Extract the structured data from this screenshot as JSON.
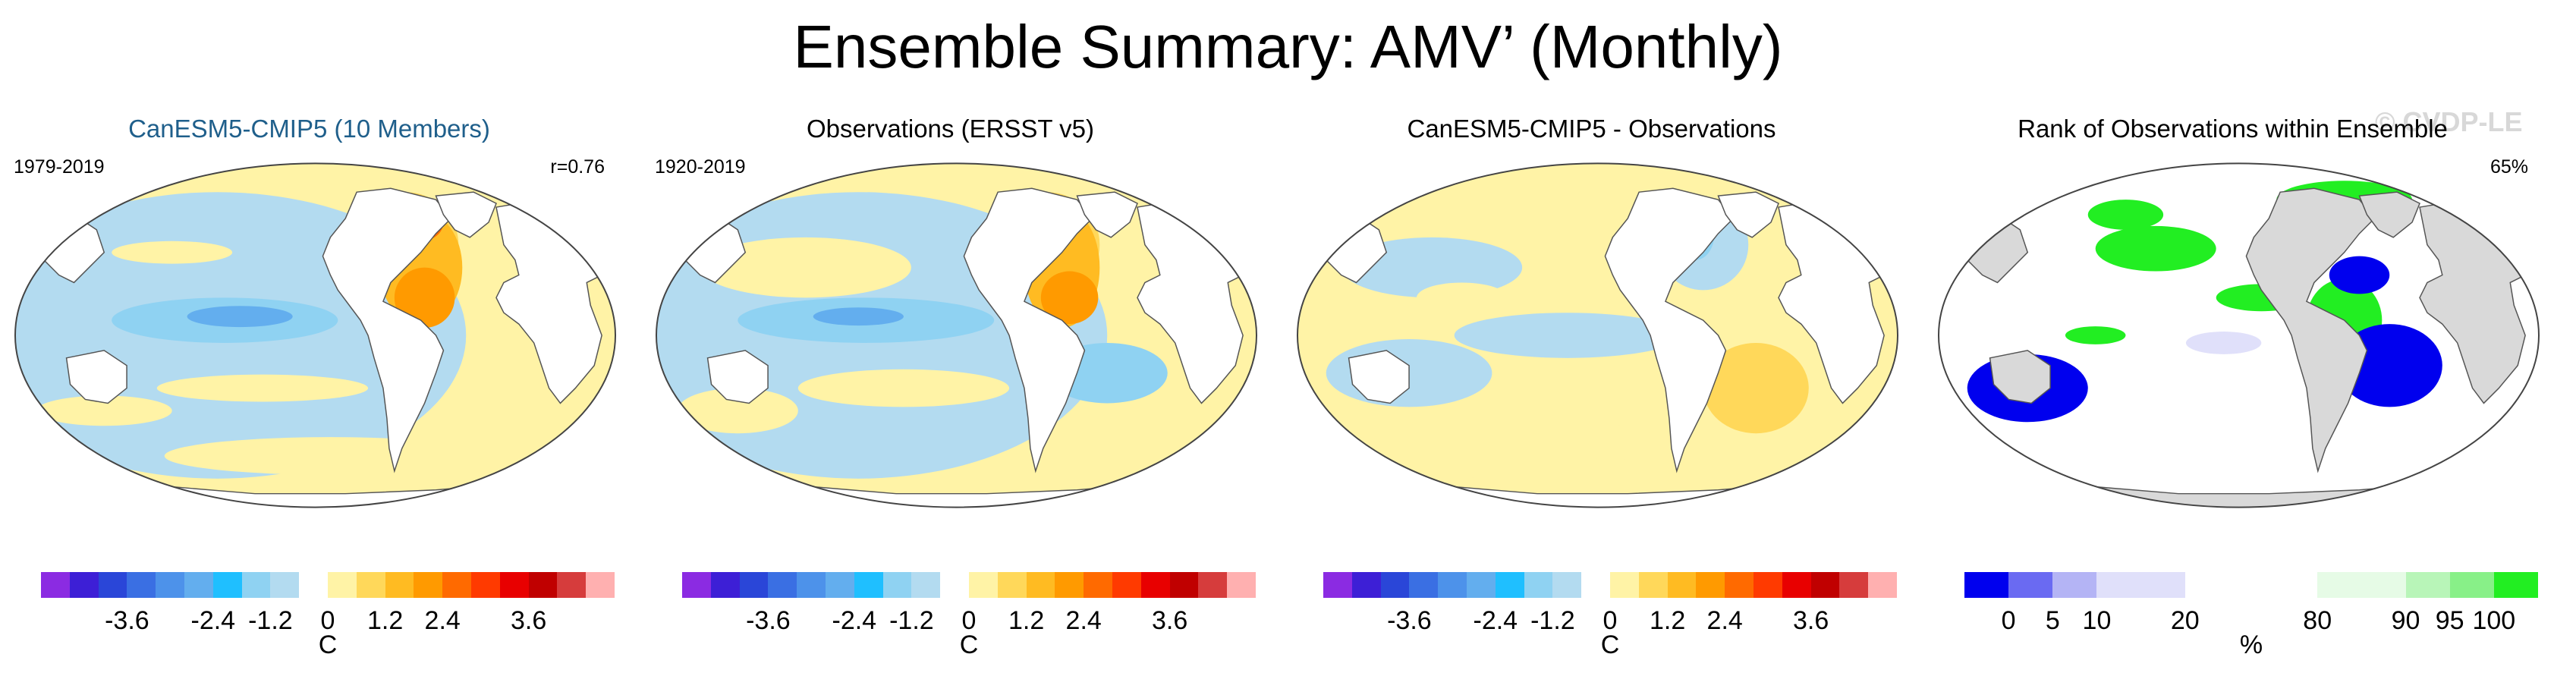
{
  "title": "Ensemble Summary: AMV’ (Monthly)",
  "watermark": "© CVDP-LE",
  "panels": [
    {
      "title": "CanESM5-CMIP5 (10 Members)",
      "title_color": "#1f5f8b",
      "left_label": "1979-2019",
      "right_label": "r=0.76",
      "ticks": [
        "-3.6",
        "-2.4",
        "-1.2",
        "0",
        "1.2",
        "2.4",
        "3.6"
      ],
      "unit": "C"
    },
    {
      "title": "Observations (ERSST v5)",
      "title_color": "#000000",
      "left_label": "1920-2019",
      "right_label": "",
      "ticks": [
        "-3.6",
        "-2.4",
        "-1.2",
        "0",
        "1.2",
        "2.4",
        "3.6"
      ],
      "unit": "C"
    },
    {
      "title": "CanESM5-CMIP5 - Observations",
      "title_color": "#000000",
      "left_label": "",
      "right_label": "",
      "ticks": [
        "-3.6",
        "-2.4",
        "-1.2",
        "0",
        "1.2",
        "2.4",
        "3.6"
      ],
      "unit": "C"
    },
    {
      "title": "Rank of Observations within Ensemble",
      "title_color": "#000000",
      "left_label": "",
      "right_label": "65%",
      "ticks": [
        "0",
        "5",
        "10",
        "20",
        "80",
        "90",
        "95",
        "100"
      ],
      "unit": "%"
    }
  ],
  "colorbars": {
    "diverging": [
      "#8b2be2",
      "#3d1fd6",
      "#2a46d8",
      "#3a6fe3",
      "#4d92ea",
      "#63aeee",
      "#1fbfff",
      "#8fd2f2",
      "#b3dbf0",
      "#ffffff",
      "#fff3a6",
      "#ffd85a",
      "#ffbb22",
      "#ff9a00",
      "#ff6a00",
      "#ff3a00",
      "#e80000",
      "#c00000",
      "#d63c3c",
      "#ffb0b0"
    ],
    "rank": [
      "#0000ee",
      "#6a6af2",
      "#b4b4f5",
      "#e0e0fa",
      "#e0e0fa",
      "#ffffff",
      "#ffffff",
      "#ffffff",
      "#e6fbe6",
      "#e6fbe6",
      "#b8f5b8",
      "#88f088",
      "#22ee22"
    ]
  }
}
